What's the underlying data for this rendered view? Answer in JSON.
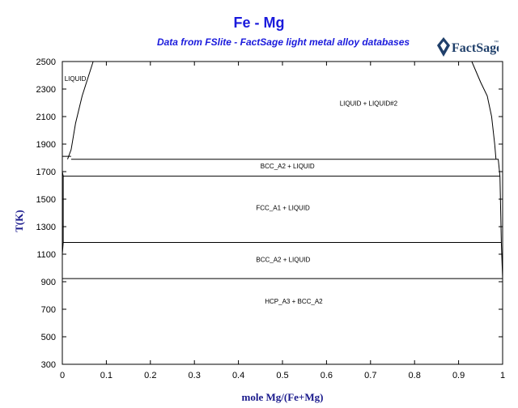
{
  "header": {
    "title": "Fe - Mg",
    "subtitle": "Data from FSlite - FactSage light metal alloy databases",
    "logo_text": "FactSage",
    "logo_tm": "™"
  },
  "colors": {
    "title": "#1a1adc",
    "axis_label": "#1a1a8c",
    "logo": "#1f3f6a"
  },
  "chart_data": {
    "type": "line",
    "title": "Fe - Mg",
    "subtitle": "Data from FSlite - FactSage light metal alloy databases",
    "xlabel": "mole Mg/(Fe+Mg)",
    "ylabel": "T(K)",
    "xlim": [
      0,
      1
    ],
    "ylim": [
      300,
      2500
    ],
    "x_ticks": [
      0,
      0.1,
      0.2,
      0.3,
      0.4,
      0.5,
      0.6,
      0.7,
      0.8,
      0.9,
      1
    ],
    "y_ticks": [
      300,
      500,
      700,
      900,
      1100,
      1300,
      1500,
      1700,
      1900,
      2100,
      2300,
      2500
    ],
    "isotherms": [
      {
        "T": 1811,
        "x_range": [
          0,
          0.02
        ]
      },
      {
        "T": 1790,
        "x_range": [
          0.02,
          0.985
        ]
      },
      {
        "T": 1667,
        "x_range": [
          0.002,
          0.994
        ]
      },
      {
        "T": 1185,
        "x_range": [
          0.002,
          0.997
        ]
      },
      {
        "T": 923,
        "x_range": [
          0,
          1
        ]
      }
    ],
    "boundaries": [
      {
        "name": "miscibility gap left",
        "points": [
          [
            0.012,
            1790
          ],
          [
            0.02,
            1860
          ],
          [
            0.03,
            2050
          ],
          [
            0.045,
            2250
          ],
          [
            0.07,
            2500
          ]
        ]
      },
      {
        "name": "miscibility gap right",
        "points": [
          [
            0.985,
            1790
          ],
          [
            0.982,
            1900
          ],
          [
            0.975,
            2100
          ],
          [
            0.965,
            2250
          ],
          [
            0.95,
            2350
          ],
          [
            0.93,
            2500
          ]
        ]
      },
      {
        "name": "Fe solidus",
        "points": [
          [
            0,
            1811
          ],
          [
            0,
            1700
          ],
          [
            0.002,
            1667
          ],
          [
            0.002,
            1185
          ],
          [
            0,
            1100
          ],
          [
            0,
            923
          ]
        ]
      },
      {
        "name": "Mg liquidus",
        "points": [
          [
            1,
            923
          ],
          [
            0.997,
            1185
          ],
          [
            0.994,
            1667
          ],
          [
            0.99,
            1790
          ],
          [
            0.985,
            1790
          ]
        ]
      }
    ],
    "regions": [
      {
        "label": "LIQUID",
        "x": 0.005,
        "T": 2360
      },
      {
        "label": "LIQUID + LIQUID#2",
        "x": 0.63,
        "T": 2180
      },
      {
        "label": "BCC_A2 + LIQUID",
        "x": 0.45,
        "T": 1725
      },
      {
        "label": "FCC_A1 + LIQUID",
        "x": 0.44,
        "T": 1420
      },
      {
        "label": "BCC_A2 + LIQUID",
        "x": 0.44,
        "T": 1045
      },
      {
        "label": "HCP_A3 + BCC_A2",
        "x": 0.46,
        "T": 740
      }
    ]
  }
}
